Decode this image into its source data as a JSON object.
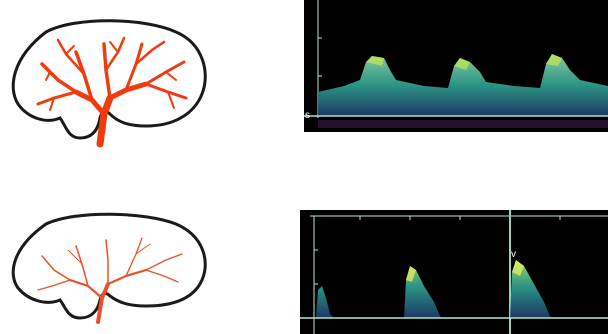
{
  "figure": {
    "panels": [
      {
        "kidney": {
          "vessel_style": "dense-branching",
          "vessel_color": "#f03a10",
          "outline_color": "#1a1a1a"
        },
        "doppler": {
          "waveform": "high-diastolic-flow",
          "baseline_marker": "s",
          "peaks": 3
        }
      },
      {
        "kidney": {
          "vessel_style": "sparse-thin",
          "vessel_color": "#e8512a",
          "outline_color": "#1a1a1a"
        },
        "doppler": {
          "waveform": "low-diastolic-flow",
          "peak_marker": "v",
          "peaks": 3
        }
      }
    ]
  },
  "colors": {
    "doppler_background": "#000000",
    "doppler_signal": "#2e9c8c",
    "doppler_highlight": "#c8e84a",
    "doppler_axis": "#b8e6d0"
  }
}
